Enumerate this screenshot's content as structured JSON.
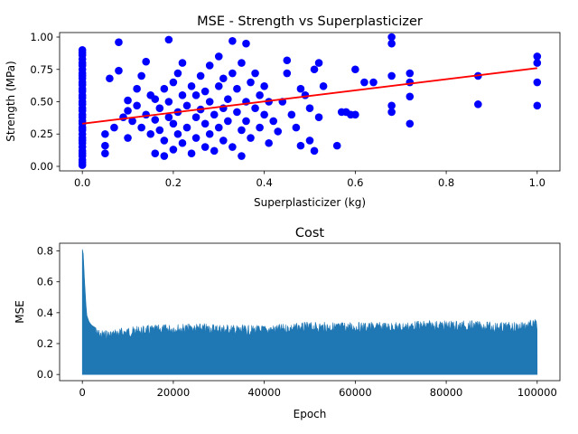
{
  "chart_data": [
    {
      "type": "scatter",
      "title": "MSE - Strength vs Superplasticizer",
      "xlabel": "Superplasticizer (kg)",
      "ylabel": "Strength (MPa)",
      "xlim": [
        -0.05,
        1.05
      ],
      "ylim": [
        -0.035,
        1.035
      ],
      "xticks": [
        "0.0",
        "0.2",
        "0.4",
        "0.6",
        "0.8",
        "1.0"
      ],
      "yticks": [
        "0.00",
        "0.25",
        "0.50",
        "0.75",
        "1.00"
      ],
      "xtick_values": [
        0,
        0.2,
        0.4,
        0.6,
        0.8,
        1.0
      ],
      "ytick_values": [
        0,
        0.25,
        0.5,
        0.75,
        1.0
      ],
      "grid": false,
      "points_color": "#0000ff",
      "line_color": "#ff0000",
      "fit_line": {
        "x": [
          0.0,
          1.0
        ],
        "y": [
          0.33,
          0.76
        ]
      },
      "points": [
        [
          0.0,
          0.01
        ],
        [
          0.0,
          0.03
        ],
        [
          0.0,
          0.05
        ],
        [
          0.0,
          0.08
        ],
        [
          0.0,
          0.1
        ],
        [
          0.0,
          0.12
        ],
        [
          0.0,
          0.15
        ],
        [
          0.0,
          0.18
        ],
        [
          0.0,
          0.2
        ],
        [
          0.0,
          0.22
        ],
        [
          0.0,
          0.25
        ],
        [
          0.0,
          0.28
        ],
        [
          0.0,
          0.3
        ],
        [
          0.0,
          0.33
        ],
        [
          0.0,
          0.35
        ],
        [
          0.0,
          0.38
        ],
        [
          0.0,
          0.4
        ],
        [
          0.0,
          0.43
        ],
        [
          0.0,
          0.45
        ],
        [
          0.0,
          0.48
        ],
        [
          0.0,
          0.5
        ],
        [
          0.0,
          0.53
        ],
        [
          0.0,
          0.55
        ],
        [
          0.0,
          0.58
        ],
        [
          0.0,
          0.6
        ],
        [
          0.0,
          0.63
        ],
        [
          0.0,
          0.65
        ],
        [
          0.0,
          0.68
        ],
        [
          0.0,
          0.7
        ],
        [
          0.0,
          0.72
        ],
        [
          0.0,
          0.75
        ],
        [
          0.0,
          0.78
        ],
        [
          0.0,
          0.8
        ],
        [
          0.0,
          0.83
        ],
        [
          0.0,
          0.86
        ],
        [
          0.0,
          0.88
        ],
        [
          0.0,
          0.9
        ],
        [
          0.05,
          0.1
        ],
        [
          0.05,
          0.16
        ],
        [
          0.05,
          0.25
        ],
        [
          0.06,
          0.68
        ],
        [
          0.07,
          0.3
        ],
        [
          0.08,
          0.74
        ],
        [
          0.08,
          0.96
        ],
        [
          0.09,
          0.38
        ],
        [
          0.1,
          0.43
        ],
        [
          0.1,
          0.22
        ],
        [
          0.1,
          0.51
        ],
        [
          0.11,
          0.35
        ],
        [
          0.12,
          0.6
        ],
        [
          0.12,
          0.47
        ],
        [
          0.13,
          0.3
        ],
        [
          0.13,
          0.7
        ],
        [
          0.14,
          0.81
        ],
        [
          0.14,
          0.4
        ],
        [
          0.15,
          0.55
        ],
        [
          0.15,
          0.25
        ],
        [
          0.16,
          0.1
        ],
        [
          0.16,
          0.36
        ],
        [
          0.16,
          0.52
        ],
        [
          0.17,
          0.45
        ],
        [
          0.17,
          0.28
        ],
        [
          0.18,
          0.2
        ],
        [
          0.18,
          0.08
        ],
        [
          0.18,
          0.6
        ],
        [
          0.19,
          0.98
        ],
        [
          0.19,
          0.38
        ],
        [
          0.19,
          0.5
        ],
        [
          0.2,
          0.13
        ],
        [
          0.2,
          0.33
        ],
        [
          0.2,
          0.65
        ],
        [
          0.21,
          0.42
        ],
        [
          0.21,
          0.25
        ],
        [
          0.21,
          0.72
        ],
        [
          0.22,
          0.18
        ],
        [
          0.22,
          0.55
        ],
        [
          0.22,
          0.8
        ],
        [
          0.23,
          0.3
        ],
        [
          0.23,
          0.47
        ],
        [
          0.24,
          0.1
        ],
        [
          0.24,
          0.62
        ],
        [
          0.25,
          0.38
        ],
        [
          0.25,
          0.22
        ],
        [
          0.25,
          0.55
        ],
        [
          0.26,
          0.7
        ],
        [
          0.26,
          0.44
        ],
        [
          0.27,
          0.15
        ],
        [
          0.27,
          0.33
        ],
        [
          0.27,
          0.58
        ],
        [
          0.28,
          0.5
        ],
        [
          0.28,
          0.25
        ],
        [
          0.28,
          0.78
        ],
        [
          0.29,
          0.4
        ],
        [
          0.29,
          0.12
        ],
        [
          0.3,
          0.62
        ],
        [
          0.3,
          0.3
        ],
        [
          0.3,
          0.85
        ],
        [
          0.31,
          0.45
        ],
        [
          0.31,
          0.2
        ],
        [
          0.31,
          0.68
        ],
        [
          0.32,
          0.52
        ],
        [
          0.32,
          0.35
        ],
        [
          0.33,
          0.15
        ],
        [
          0.33,
          0.72
        ],
        [
          0.33,
          0.97
        ],
        [
          0.34,
          0.42
        ],
        [
          0.34,
          0.6
        ],
        [
          0.35,
          0.28
        ],
        [
          0.35,
          0.08
        ],
        [
          0.35,
          0.8
        ],
        [
          0.36,
          0.5
        ],
        [
          0.36,
          0.35
        ],
        [
          0.36,
          0.95
        ],
        [
          0.37,
          0.65
        ],
        [
          0.37,
          0.22
        ],
        [
          0.38,
          0.45
        ],
        [
          0.38,
          0.72
        ],
        [
          0.39,
          0.3
        ],
        [
          0.39,
          0.55
        ],
        [
          0.4,
          0.4
        ],
        [
          0.4,
          0.62
        ],
        [
          0.41,
          0.18
        ],
        [
          0.41,
          0.5
        ],
        [
          0.42,
          0.35
        ],
        [
          0.43,
          0.27
        ],
        [
          0.44,
          0.5
        ],
        [
          0.45,
          0.82
        ],
        [
          0.45,
          0.72
        ],
        [
          0.46,
          0.4
        ],
        [
          0.47,
          0.3
        ],
        [
          0.48,
          0.16
        ],
        [
          0.48,
          0.6
        ],
        [
          0.49,
          0.55
        ],
        [
          0.5,
          0.45
        ],
        [
          0.5,
          0.2
        ],
        [
          0.51,
          0.75
        ],
        [
          0.51,
          0.12
        ],
        [
          0.52,
          0.38
        ],
        [
          0.52,
          0.8
        ],
        [
          0.53,
          0.62
        ],
        [
          0.56,
          0.16
        ],
        [
          0.57,
          0.42
        ],
        [
          0.58,
          0.42
        ],
        [
          0.59,
          0.4
        ],
        [
          0.6,
          0.4
        ],
        [
          0.6,
          0.75
        ],
        [
          0.62,
          0.65
        ],
        [
          0.64,
          0.65
        ],
        [
          0.68,
          1.0
        ],
        [
          0.68,
          0.95
        ],
        [
          0.68,
          0.7
        ],
        [
          0.68,
          0.47
        ],
        [
          0.68,
          0.42
        ],
        [
          0.72,
          0.72
        ],
        [
          0.72,
          0.65
        ],
        [
          0.72,
          0.54
        ],
        [
          0.72,
          0.33
        ],
        [
          0.87,
          0.7
        ],
        [
          0.87,
          0.48
        ],
        [
          1.0,
          0.85
        ],
        [
          1.0,
          0.8
        ],
        [
          1.0,
          0.65
        ],
        [
          1.0,
          0.47
        ]
      ]
    },
    {
      "type": "area",
      "title": "Cost",
      "xlabel": "Epoch",
      "ylabel": "MSE",
      "xlim": [
        -5000,
        105000
      ],
      "ylim": [
        -0.04,
        0.85
      ],
      "xticks": [
        "0",
        "20000",
        "40000",
        "60000",
        "80000",
        "100000"
      ],
      "yticks": [
        "0.0",
        "0.2",
        "0.4",
        "0.6",
        "0.8"
      ],
      "xtick_values": [
        0,
        20000,
        40000,
        60000,
        80000,
        100000
      ],
      "ytick_values": [
        0,
        0.2,
        0.4,
        0.6,
        0.8
      ],
      "grid": false,
      "series_color": "#1f77b4",
      "envelope": {
        "x": [
          0,
          200,
          500,
          800,
          1000,
          1500,
          2000,
          3000,
          4000,
          6000,
          8000,
          10000,
          15000,
          20000,
          25000,
          30000,
          35000,
          40000,
          45000,
          50000,
          55000,
          60000,
          65000,
          70000,
          75000,
          80000,
          85000,
          90000,
          95000,
          100000
        ],
        "y": [
          0.81,
          0.78,
          0.6,
          0.45,
          0.38,
          0.34,
          0.32,
          0.3,
          0.29,
          0.29,
          0.3,
          0.31,
          0.32,
          0.33,
          0.33,
          0.33,
          0.32,
          0.32,
          0.33,
          0.34,
          0.34,
          0.34,
          0.34,
          0.34,
          0.35,
          0.35,
          0.35,
          0.34,
          0.34,
          0.36
        ]
      }
    }
  ]
}
